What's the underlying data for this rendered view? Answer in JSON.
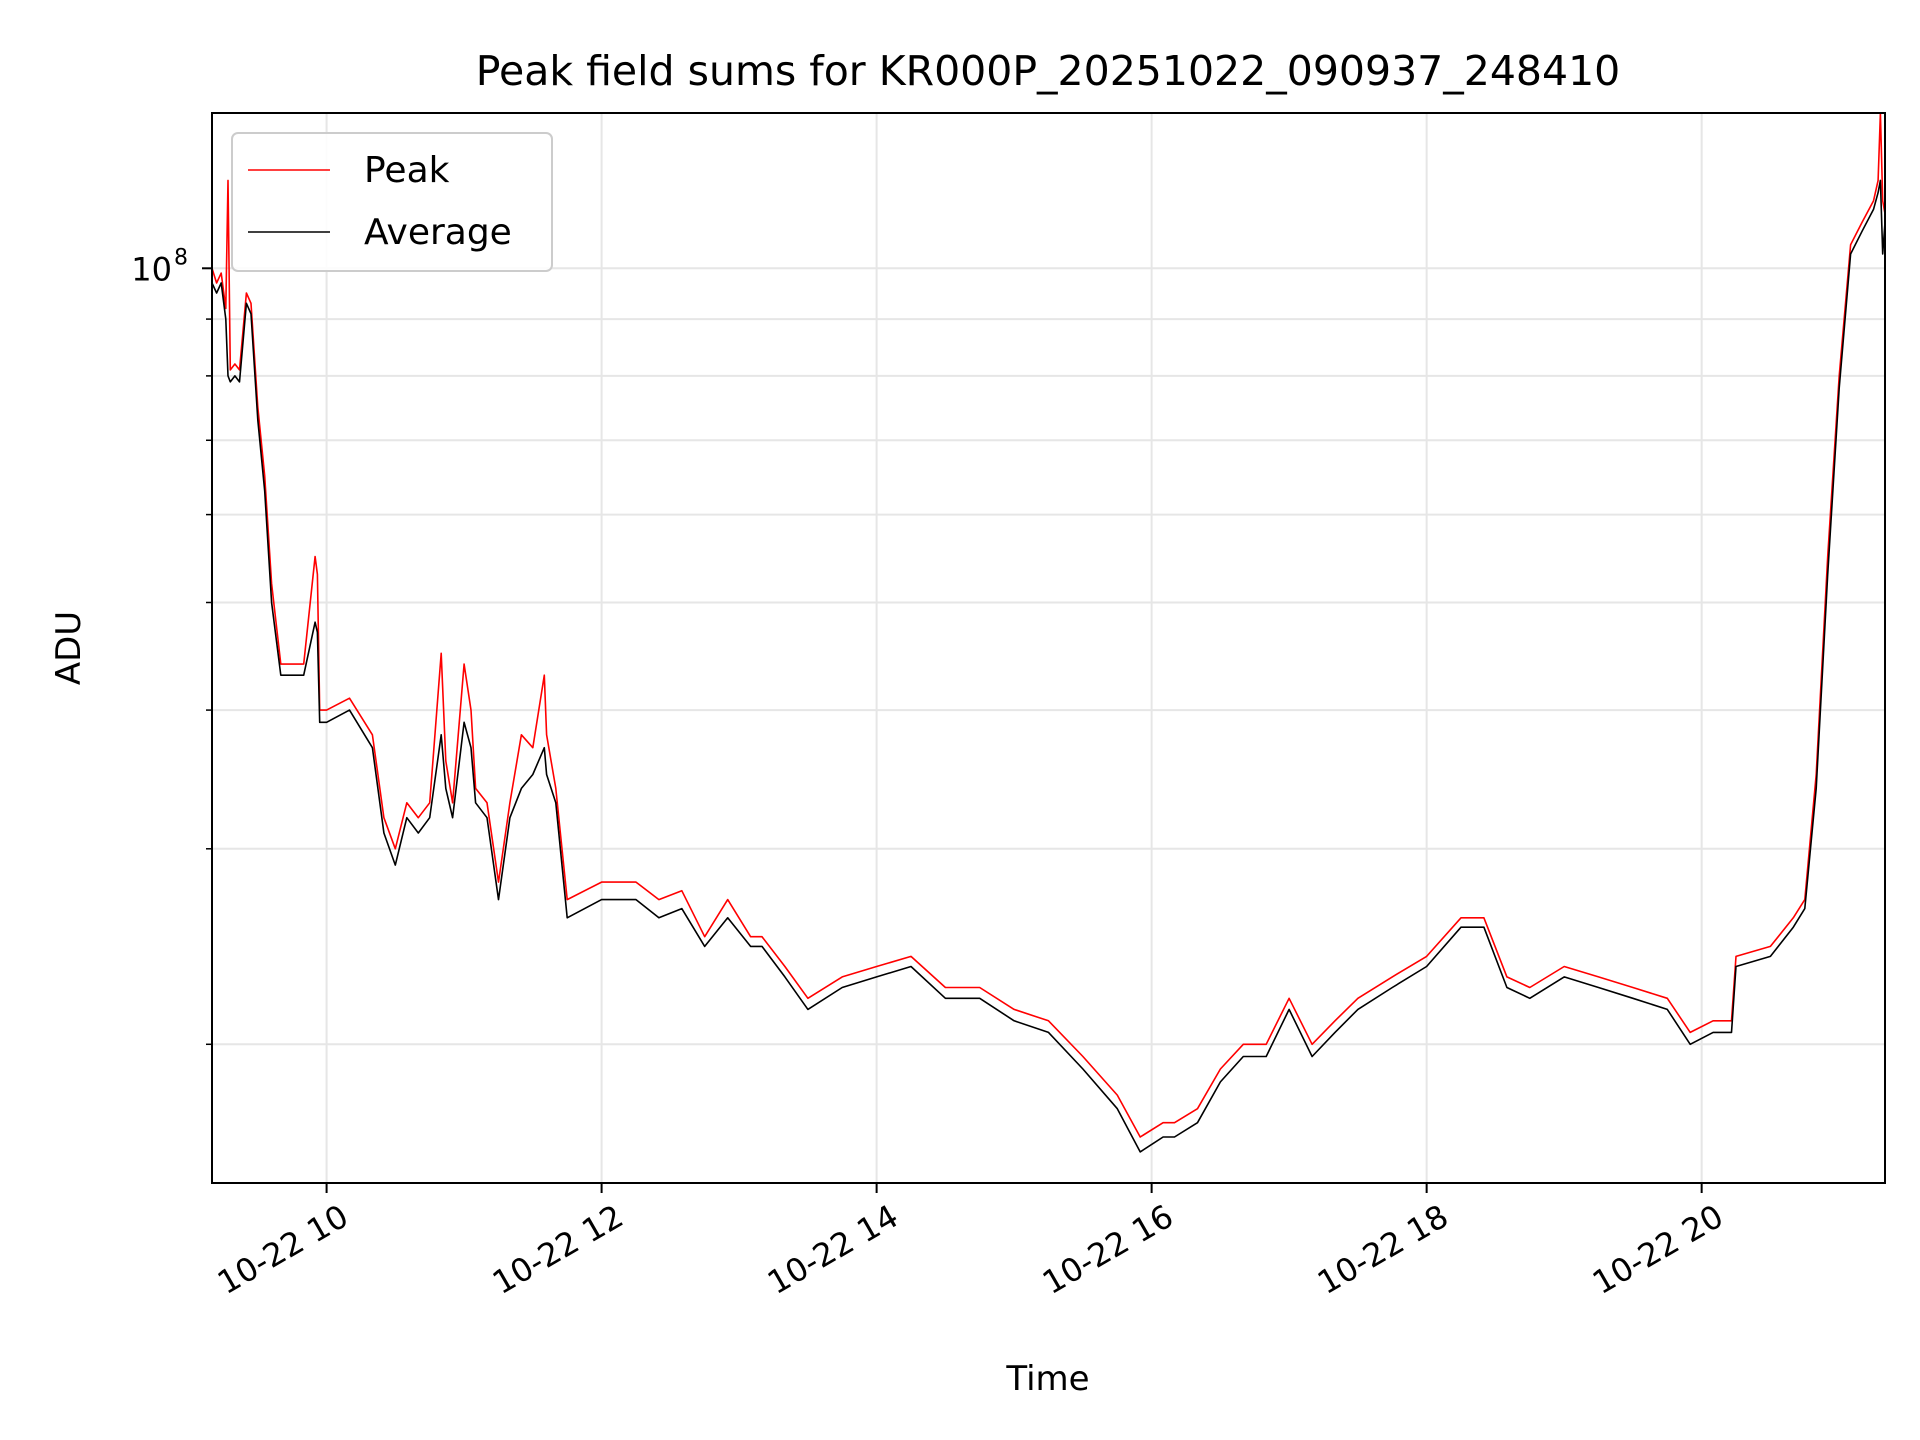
{
  "chart_data": {
    "type": "line",
    "title": "Peak field sums for KR000P_20251022_090937_248410",
    "xlabel": "Time",
    "ylabel": "ADU",
    "xlim": [
      "2025-10-22 09:10",
      "2025-10-22 21:20"
    ],
    "ylim": [
      15000000,
      138000000
    ],
    "y_scale": "log",
    "x_ticks": [
      {
        "value": "2025-10-22 10:00",
        "label": "10-22 10"
      },
      {
        "value": "2025-10-22 12:00",
        "label": "10-22 12"
      },
      {
        "value": "2025-10-22 14:00",
        "label": "10-22 14"
      },
      {
        "value": "2025-10-22 16:00",
        "label": "10-22 16"
      },
      {
        "value": "2025-10-22 18:00",
        "label": "10-22 18"
      },
      {
        "value": "2025-10-22 20:00",
        "label": "10-22 20"
      }
    ],
    "y_ticks": [
      {
        "value": 100000000,
        "label_base": "10",
        "label_exp": "8"
      }
    ],
    "grid": true,
    "legend_position": "upper-left",
    "series": [
      {
        "name": "Peak",
        "color": "#ff0000",
        "x": [
          "2025-10-22 09:10",
          "2025-10-22 09:12",
          "2025-10-22 09:14",
          "2025-10-22 09:16",
          "2025-10-22 09:17",
          "2025-10-22 09:18",
          "2025-10-22 09:20",
          "2025-10-22 09:22",
          "2025-10-22 09:25",
          "2025-10-22 09:27",
          "2025-10-22 09:30",
          "2025-10-22 09:33",
          "2025-10-22 09:36",
          "2025-10-22 09:40",
          "2025-10-22 09:45",
          "2025-10-22 09:50",
          "2025-10-22 09:55",
          "2025-10-22 09:56",
          "2025-10-22 09:57",
          "2025-10-22 10:00",
          "2025-10-22 10:10",
          "2025-10-22 10:20",
          "2025-10-22 10:25",
          "2025-10-22 10:30",
          "2025-10-22 10:35",
          "2025-10-22 10:40",
          "2025-10-22 10:45",
          "2025-10-22 10:50",
          "2025-10-22 10:52",
          "2025-10-22 10:55",
          "2025-10-22 11:00",
          "2025-10-22 11:03",
          "2025-10-22 11:05",
          "2025-10-22 11:10",
          "2025-10-22 11:15",
          "2025-10-22 11:20",
          "2025-10-22 11:25",
          "2025-10-22 11:30",
          "2025-10-22 11:35",
          "2025-10-22 11:36",
          "2025-10-22 11:40",
          "2025-10-22 11:45",
          "2025-10-22 12:00",
          "2025-10-22 12:15",
          "2025-10-22 12:25",
          "2025-10-22 12:35",
          "2025-10-22 12:45",
          "2025-10-22 12:55",
          "2025-10-22 13:05",
          "2025-10-22 13:10",
          "2025-10-22 13:20",
          "2025-10-22 13:30",
          "2025-10-22 13:45",
          "2025-10-22 14:00",
          "2025-10-22 14:15",
          "2025-10-22 14:30",
          "2025-10-22 14:45",
          "2025-10-22 15:00",
          "2025-10-22 15:15",
          "2025-10-22 15:30",
          "2025-10-22 15:45",
          "2025-10-22 15:55",
          "2025-10-22 16:05",
          "2025-10-22 16:10",
          "2025-10-22 16:20",
          "2025-10-22 16:30",
          "2025-10-22 16:40",
          "2025-10-22 16:50",
          "2025-10-22 17:00",
          "2025-10-22 17:10",
          "2025-10-22 17:20",
          "2025-10-22 17:30",
          "2025-10-22 17:45",
          "2025-10-22 18:00",
          "2025-10-22 18:15",
          "2025-10-22 18:25",
          "2025-10-22 18:35",
          "2025-10-22 18:45",
          "2025-10-22 19:00",
          "2025-10-22 19:15",
          "2025-10-22 19:30",
          "2025-10-22 19:45",
          "2025-10-22 19:55",
          "2025-10-22 20:05",
          "2025-10-22 20:13",
          "2025-10-22 20:15",
          "2025-10-22 20:30",
          "2025-10-22 20:40",
          "2025-10-22 20:45",
          "2025-10-22 20:50",
          "2025-10-22 20:55",
          "2025-10-22 21:00",
          "2025-10-22 21:05",
          "2025-10-22 21:10",
          "2025-10-22 21:15",
          "2025-10-22 21:17",
          "2025-10-22 21:18",
          "2025-10-22 21:19",
          "2025-10-22 21:20"
        ],
        "y": [
          100000000,
          97000000,
          99000000,
          92000000,
          120000000,
          81000000,
          82000000,
          81000000,
          95000000,
          93000000,
          75000000,
          65000000,
          52000000,
          44000000,
          44000000,
          44000000,
          55000000,
          53000000,
          40000000,
          40000000,
          41000000,
          38000000,
          32000000,
          30000000,
          33000000,
          32000000,
          33000000,
          45000000,
          36000000,
          33000000,
          44000000,
          40000000,
          34000000,
          33000000,
          28000000,
          33000000,
          38000000,
          37000000,
          43000000,
          38000000,
          34000000,
          27000000,
          28000000,
          28000000,
          27000000,
          27500000,
          25000000,
          27000000,
          25000000,
          25000000,
          23500000,
          22000000,
          23000000,
          23500000,
          24000000,
          22500000,
          22500000,
          21500000,
          21000000,
          19500000,
          18000000,
          16500000,
          17000000,
          17000000,
          17500000,
          19000000,
          20000000,
          20000000,
          22000000,
          20000000,
          21000000,
          22000000,
          23000000,
          24000000,
          26000000,
          26000000,
          23000000,
          22500000,
          23500000,
          23000000,
          22500000,
          22000000,
          20500000,
          21000000,
          21000000,
          24000000,
          24500000,
          26000000,
          27000000,
          35000000,
          55000000,
          80000000,
          105000000,
          110000000,
          115000000,
          120000000,
          138000000,
          115000000,
          112000000
        ]
      },
      {
        "name": "Average",
        "color": "#000000",
        "x": [
          "2025-10-22 09:10",
          "2025-10-22 09:12",
          "2025-10-22 09:14",
          "2025-10-22 09:16",
          "2025-10-22 09:17",
          "2025-10-22 09:18",
          "2025-10-22 09:20",
          "2025-10-22 09:22",
          "2025-10-22 09:25",
          "2025-10-22 09:27",
          "2025-10-22 09:30",
          "2025-10-22 09:33",
          "2025-10-22 09:36",
          "2025-10-22 09:40",
          "2025-10-22 09:45",
          "2025-10-22 09:50",
          "2025-10-22 09:55",
          "2025-10-22 09:56",
          "2025-10-22 09:57",
          "2025-10-22 10:00",
          "2025-10-22 10:10",
          "2025-10-22 10:20",
          "2025-10-22 10:25",
          "2025-10-22 10:30",
          "2025-10-22 10:35",
          "2025-10-22 10:40",
          "2025-10-22 10:45",
          "2025-10-22 10:50",
          "2025-10-22 10:52",
          "2025-10-22 10:55",
          "2025-10-22 11:00",
          "2025-10-22 11:03",
          "2025-10-22 11:05",
          "2025-10-22 11:10",
          "2025-10-22 11:15",
          "2025-10-22 11:20",
          "2025-10-22 11:25",
          "2025-10-22 11:30",
          "2025-10-22 11:35",
          "2025-10-22 11:36",
          "2025-10-22 11:40",
          "2025-10-22 11:45",
          "2025-10-22 12:00",
          "2025-10-22 12:15",
          "2025-10-22 12:25",
          "2025-10-22 12:35",
          "2025-10-22 12:45",
          "2025-10-22 12:55",
          "2025-10-22 13:05",
          "2025-10-22 13:10",
          "2025-10-22 13:20",
          "2025-10-22 13:30",
          "2025-10-22 13:45",
          "2025-10-22 14:00",
          "2025-10-22 14:15",
          "2025-10-22 14:30",
          "2025-10-22 14:45",
          "2025-10-22 15:00",
          "2025-10-22 15:15",
          "2025-10-22 15:30",
          "2025-10-22 15:45",
          "2025-10-22 15:55",
          "2025-10-22 16:05",
          "2025-10-22 16:10",
          "2025-10-22 16:20",
          "2025-10-22 16:30",
          "2025-10-22 16:40",
          "2025-10-22 16:50",
          "2025-10-22 17:00",
          "2025-10-22 17:10",
          "2025-10-22 17:20",
          "2025-10-22 17:30",
          "2025-10-22 17:45",
          "2025-10-22 18:00",
          "2025-10-22 18:15",
          "2025-10-22 18:25",
          "2025-10-22 18:35",
          "2025-10-22 18:45",
          "2025-10-22 19:00",
          "2025-10-22 19:15",
          "2025-10-22 19:30",
          "2025-10-22 19:45",
          "2025-10-22 19:55",
          "2025-10-22 20:05",
          "2025-10-22 20:13",
          "2025-10-22 20:15",
          "2025-10-22 20:30",
          "2025-10-22 20:40",
          "2025-10-22 20:45",
          "2025-10-22 20:50",
          "2025-10-22 20:55",
          "2025-10-22 21:00",
          "2025-10-22 21:05",
          "2025-10-22 21:10",
          "2025-10-22 21:15",
          "2025-10-22 21:17",
          "2025-10-22 21:18",
          "2025-10-22 21:19",
          "2025-10-22 21:20"
        ],
        "y": [
          97000000,
          95000000,
          97000000,
          90000000,
          80000000,
          79000000,
          80000000,
          79000000,
          93000000,
          91000000,
          73000000,
          63000000,
          50000000,
          43000000,
          43000000,
          43000000,
          48000000,
          47000000,
          39000000,
          39000000,
          40000000,
          37000000,
          31000000,
          29000000,
          32000000,
          31000000,
          32000000,
          38000000,
          34000000,
          32000000,
          39000000,
          37000000,
          33000000,
          32000000,
          27000000,
          32000000,
          34000000,
          35000000,
          37000000,
          35000000,
          33000000,
          26000000,
          27000000,
          27000000,
          26000000,
          26500000,
          24500000,
          26000000,
          24500000,
          24500000,
          23000000,
          21500000,
          22500000,
          23000000,
          23500000,
          22000000,
          22000000,
          21000000,
          20500000,
          19000000,
          17500000,
          16000000,
          16500000,
          16500000,
          17000000,
          18500000,
          19500000,
          19500000,
          21500000,
          19500000,
          20500000,
          21500000,
          22500000,
          23500000,
          25500000,
          25500000,
          22500000,
          22000000,
          23000000,
          22500000,
          22000000,
          21500000,
          20000000,
          20500000,
          20500000,
          23500000,
          24000000,
          25500000,
          26500000,
          34000000,
          53000000,
          78000000,
          103000000,
          108000000,
          113000000,
          117000000,
          120000000,
          103000000,
          110000000
        ]
      }
    ]
  }
}
